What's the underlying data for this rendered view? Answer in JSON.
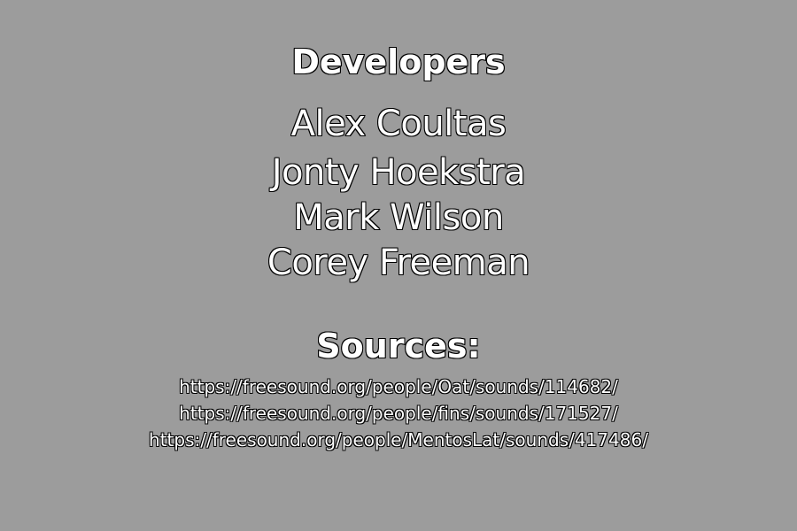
{
  "developers": {
    "heading": "Developers",
    "names": [
      "Alex Coultas",
      "Jonty Hoekstra",
      "Mark Wilson",
      "Corey Freeman"
    ]
  },
  "sources": {
    "heading": "Sources:",
    "links": [
      "https://freesound.org/people/Oat/sounds/114682/",
      "https://freesound.org/people/fins/sounds/171527/",
      "https://freesound.org/people/MentosLat/sounds/417486/"
    ]
  },
  "colors": {
    "background": "#9c9c9c",
    "text": "#ffffff",
    "outline": "#000000"
  }
}
